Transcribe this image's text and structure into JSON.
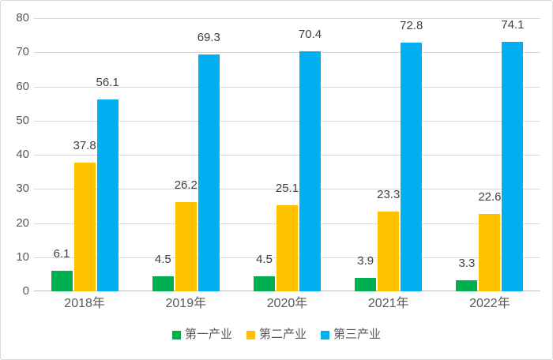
{
  "colors": {
    "series_1": "#00B050",
    "series_2": "#FFC000",
    "series_3": "#00B0F0",
    "gridline": "#D9D9D9",
    "axis_line": "#BFBFBF",
    "tick_text": "#595959",
    "data_label_text": "#404040",
    "card_border": "#D9D9D9",
    "background": "#FFFFFF"
  },
  "chart_data": {
    "type": "bar",
    "title": "",
    "categories": [
      "2018年",
      "2019年",
      "2020年",
      "2021年",
      "2022年"
    ],
    "series": [
      {
        "name": "第一产业",
        "color": "#00B050",
        "values": [
          6.1,
          4.5,
          4.5,
          3.9,
          3.3
        ]
      },
      {
        "name": "第二产业",
        "color": "#FFC000",
        "values": [
          37.8,
          26.2,
          25.1,
          23.3,
          22.6
        ]
      },
      {
        "name": "第三产业",
        "color": "#00B0F0",
        "values": [
          56.1,
          69.3,
          70.4,
          72.8,
          74.1
        ]
      }
    ],
    "y_ticks": [
      0,
      10,
      20,
      30,
      40,
      50,
      60,
      70,
      80
    ],
    "ylim": [
      0,
      80
    ],
    "xlabel": "",
    "ylabel": "",
    "grid": true,
    "data_labels": true,
    "legend_position": "bottom"
  }
}
